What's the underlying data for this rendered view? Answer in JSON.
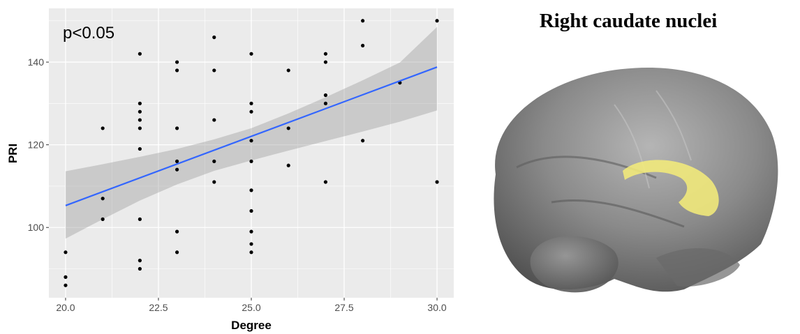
{
  "chart_data": {
    "type": "scatter",
    "annotation": "p<0.05",
    "xlabel": "Degree",
    "ylabel": "PRI",
    "xlim": [
      19.55,
      30.45
    ],
    "ylim": [
      83,
      153
    ],
    "x_ticks": [
      "20.0",
      "22.5",
      "25.0",
      "27.5",
      "30.0"
    ],
    "x_tick_values": [
      20,
      22.5,
      25,
      27.5,
      30
    ],
    "y_ticks": [
      "100",
      "120",
      "140"
    ],
    "y_tick_values": [
      100,
      120,
      140
    ],
    "grid": true,
    "points": [
      [
        20,
        94
      ],
      [
        20,
        88
      ],
      [
        20,
        86
      ],
      [
        21,
        124
      ],
      [
        21,
        107
      ],
      [
        21,
        102
      ],
      [
        22,
        142
      ],
      [
        22,
        130
      ],
      [
        22,
        128
      ],
      [
        22,
        126
      ],
      [
        22,
        124
      ],
      [
        22,
        119
      ],
      [
        22,
        102
      ],
      [
        22,
        92
      ],
      [
        22,
        90
      ],
      [
        23,
        140
      ],
      [
        23,
        138
      ],
      [
        23,
        124
      ],
      [
        23,
        116
      ],
      [
        23,
        114
      ],
      [
        23,
        99
      ],
      [
        23,
        94
      ],
      [
        24,
        146
      ],
      [
        24,
        138
      ],
      [
        24,
        126
      ],
      [
        24,
        116
      ],
      [
        24,
        111
      ],
      [
        25,
        142
      ],
      [
        25,
        130
      ],
      [
        25,
        128
      ],
      [
        25,
        121
      ],
      [
        25,
        116
      ],
      [
        25,
        109
      ],
      [
        25,
        104
      ],
      [
        25,
        99
      ],
      [
        25,
        96
      ],
      [
        25,
        94
      ],
      [
        26,
        138
      ],
      [
        26,
        124
      ],
      [
        26,
        115
      ],
      [
        27,
        142
      ],
      [
        27,
        140
      ],
      [
        27,
        132
      ],
      [
        27,
        130
      ],
      [
        27,
        111
      ],
      [
        28,
        150
      ],
      [
        28,
        144
      ],
      [
        28,
        121
      ],
      [
        29,
        135
      ],
      [
        30,
        150
      ],
      [
        30,
        111
      ]
    ],
    "fit_line": {
      "x": [
        20,
        30
      ],
      "y": [
        105.3,
        138.8
      ]
    },
    "confidence_band": {
      "x": [
        20,
        21,
        22,
        23,
        24,
        25,
        26,
        27,
        28,
        29,
        30
      ],
      "lower": [
        97.3,
        102.0,
        106.5,
        110.4,
        113.7,
        116.2,
        118.6,
        120.9,
        123.2,
        125.6,
        128.3
      ],
      "upper": [
        113.6,
        115.3,
        117.1,
        119.0,
        121.3,
        124.0,
        127.6,
        131.5,
        135.6,
        139.9,
        148.5
      ]
    },
    "colors": {
      "panel": "#ebebeb",
      "grid": "#ffffff",
      "points": "#000000",
      "fit": "#3366ff",
      "band": "#999999"
    }
  },
  "brain_panel": {
    "title": "Right caudate nuclei",
    "colors": {
      "brain": "#8a8a8a",
      "highlight": "#f2ea7a"
    }
  }
}
